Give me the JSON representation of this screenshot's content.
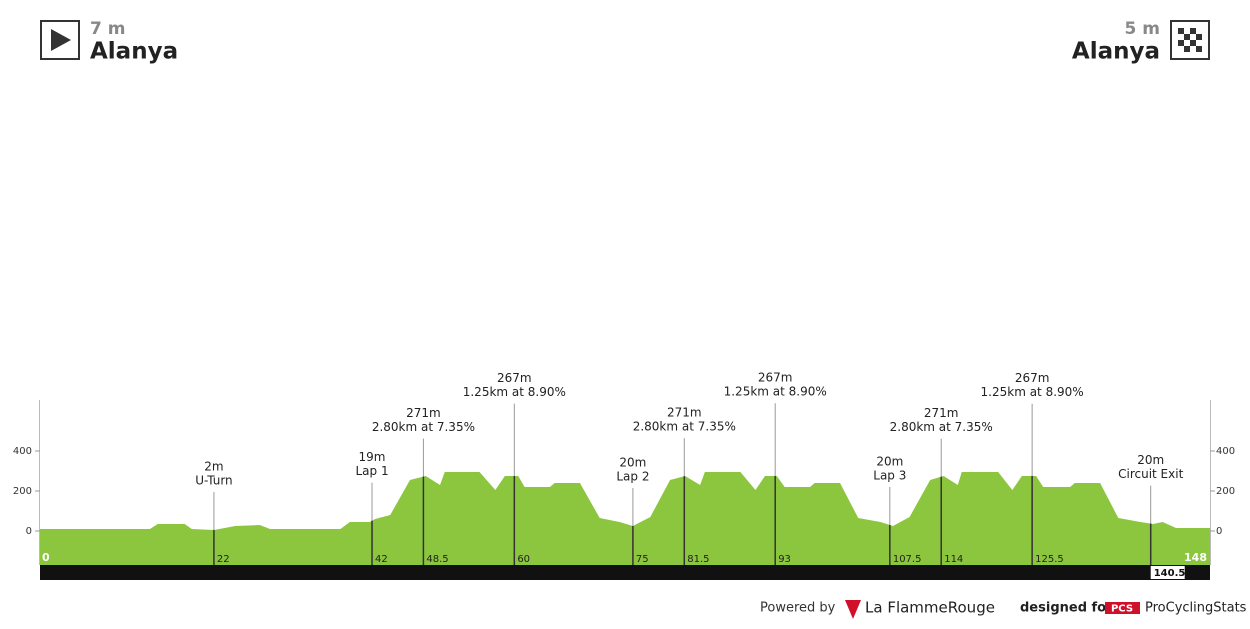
{
  "header": {
    "start": {
      "elevation": "7 m",
      "name": "Alanya"
    },
    "finish": {
      "elevation": "5 m",
      "name": "Alanya"
    }
  },
  "chart_data": {
    "type": "area",
    "color": "#8cc63f",
    "x": [
      0,
      13.9,
      14.9,
      18.3,
      19.2,
      22,
      24.7,
      27.8,
      29.1,
      38,
      39.2,
      41.7,
      42.4,
      44.3,
      46.8,
      48.8,
      50.6,
      51.2,
      55.6,
      57.6,
      58.8,
      60.5,
      61.3,
      64.5,
      65.1,
      68.3,
      70.8,
      73.3,
      75,
      77.2,
      79.7,
      81.6,
      83.5,
      84.1,
      88.6,
      90.5,
      91.7,
      93.2,
      94.2,
      97.4,
      98,
      101.2,
      103.5,
      106.3,
      107.9,
      110,
      112.6,
      114.3,
      116.1,
      116.6,
      121.2,
      123,
      124.2,
      126,
      126.9,
      130.3,
      130.9,
      134.1,
      136.4,
      139.2,
      140.8,
      142,
      143.7,
      148
    ],
    "values": [
      10,
      10,
      35,
      35,
      10,
      5,
      25,
      30,
      10,
      10,
      45,
      45,
      60,
      80,
      255,
      275,
      230,
      295,
      295,
      205,
      275,
      275,
      220,
      220,
      240,
      240,
      65,
      45,
      25,
      70,
      255,
      275,
      230,
      295,
      295,
      205,
      275,
      275,
      220,
      220,
      240,
      240,
      65,
      45,
      25,
      70,
      255,
      275,
      230,
      295,
      295,
      205,
      275,
      275,
      220,
      220,
      240,
      240,
      65,
      45,
      35,
      45,
      15,
      15
    ],
    "xlim": [
      0,
      148
    ],
    "ylim": [
      -170,
      655
    ],
    "yticks": [
      0,
      200,
      400
    ],
    "markers": [
      {
        "x": 22,
        "title": "2m",
        "text": "U-Turn"
      },
      {
        "x": 42,
        "title": "19m",
        "text": "Lap 1"
      },
      {
        "x": 48.5,
        "title": "271m",
        "text": "2.80km at 7.35%"
      },
      {
        "x": 60,
        "title": "267m",
        "text": "1.25km at 8.90%"
      },
      {
        "x": 75,
        "title": "20m",
        "text": "Lap 2"
      },
      {
        "x": 81.5,
        "title": "271m",
        "text": "2.80km at 7.35%"
      },
      {
        "x": 93,
        "title": "267m",
        "text": "1.25km at 8.90%"
      },
      {
        "x": 107.5,
        "title": "20m",
        "text": "Lap 3"
      },
      {
        "x": 114,
        "title": "271m",
        "text": "2.80km at 7.35%"
      },
      {
        "x": 125.5,
        "title": "267m",
        "text": "1.25km at 8.90%"
      },
      {
        "x": 140.5,
        "title": "20m",
        "text": "Circuit Exit"
      }
    ]
  },
  "footer": {
    "powered": "Powered by",
    "brand": "La FlammeRouge",
    "designed": "designed for",
    "pcs": "PCS",
    "site": "ProCyclingStats"
  }
}
